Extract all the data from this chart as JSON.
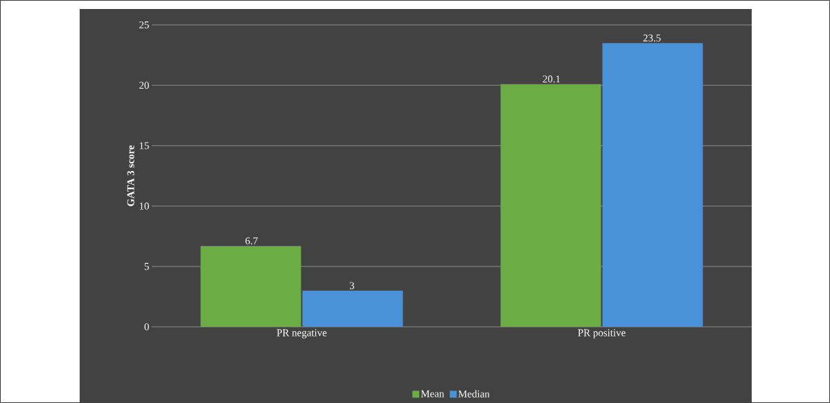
{
  "chart_data": {
    "type": "bar",
    "ylabel": "GATA 3 score",
    "categories": [
      "PR negative",
      "PR positive"
    ],
    "series": [
      {
        "name": "Mean",
        "color": "#6aad45",
        "values": [
          6.7,
          20.1
        ]
      },
      {
        "name": "Median",
        "color": "#4a92d8",
        "values": [
          3,
          23.5
        ]
      }
    ],
    "ylim": [
      0,
      25
    ],
    "yticks": [
      0,
      5,
      10,
      15,
      20,
      25
    ],
    "grid": "y",
    "legend": "bottom",
    "data_labels": true
  }
}
